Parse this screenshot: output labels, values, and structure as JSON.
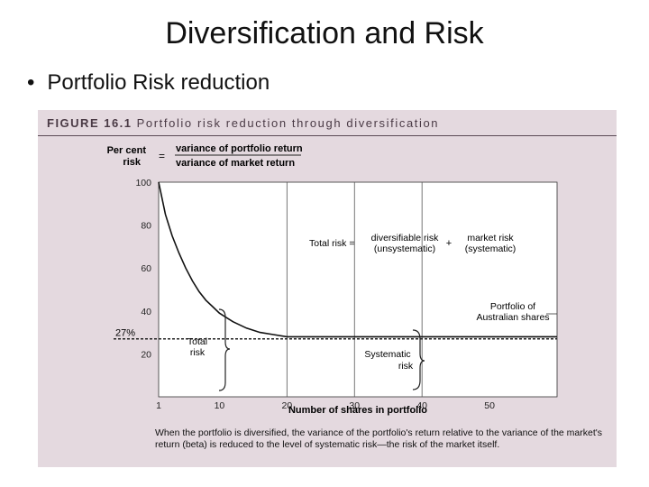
{
  "slide": {
    "title": "Diversification and Risk",
    "bullet_symbol": "•",
    "bullet_text": "Portfolio Risk reduction"
  },
  "figure": {
    "label": "FIGURE 16.1",
    "heading": "Portfolio risk reduction through diversification",
    "y_formula": {
      "left": "Per cent risk",
      "left_line1": "Per cent",
      "left_line2": "risk",
      "equals": "=",
      "numerator": "variance of portfolio return",
      "denominator": "variance of market return"
    },
    "equation": {
      "total": "Total risk =",
      "diversifiable_line1": "diversifiable risk",
      "diversifiable_line2": "(unsystematic)",
      "plus": "+",
      "market_line1": "market risk",
      "market_line2": "(systematic)"
    },
    "callouts": {
      "portfolio_line1": "Portfolio of",
      "portfolio_line2": "Australian shares",
      "total_risk_line1": "Total",
      "total_risk_line2": "risk",
      "systematic_line1": "Systematic",
      "systematic_line2": "risk",
      "market_level": "27%"
    },
    "caption": "When the portfolio is diversified, the variance of the portfolio's return relative to the variance of the market's return (beta) is reduced to the level of systematic risk—the risk of the market itself."
  },
  "chart_data": {
    "type": "line",
    "title": "Portfolio risk reduction through diversification",
    "xlabel": "Number of shares in portfolio",
    "ylabel": "Per cent risk",
    "xlim": [
      1,
      60
    ],
    "ylim": [
      0,
      100
    ],
    "x_ticks": [
      1,
      10,
      20,
      30,
      40,
      50
    ],
    "y_ticks": [
      20,
      40,
      60,
      80,
      100
    ],
    "grid": "vertical at 20, 30, 40; horizontal at 100",
    "series": [
      {
        "name": "Portfolio of Australian shares",
        "x": [
          1,
          2,
          3,
          4,
          5,
          6,
          7,
          8,
          9,
          10,
          12,
          14,
          16,
          18,
          20,
          25,
          30,
          40,
          50,
          60
        ],
        "y": [
          100,
          85,
          75,
          67,
          60,
          54,
          49,
          45,
          42,
          39,
          35,
          32,
          30,
          29,
          28,
          28,
          28,
          28,
          28,
          28
        ]
      }
    ],
    "reference_lines": [
      {
        "type": "horizontal",
        "y": 27,
        "label": "27%",
        "style": "dashed"
      }
    ]
  }
}
